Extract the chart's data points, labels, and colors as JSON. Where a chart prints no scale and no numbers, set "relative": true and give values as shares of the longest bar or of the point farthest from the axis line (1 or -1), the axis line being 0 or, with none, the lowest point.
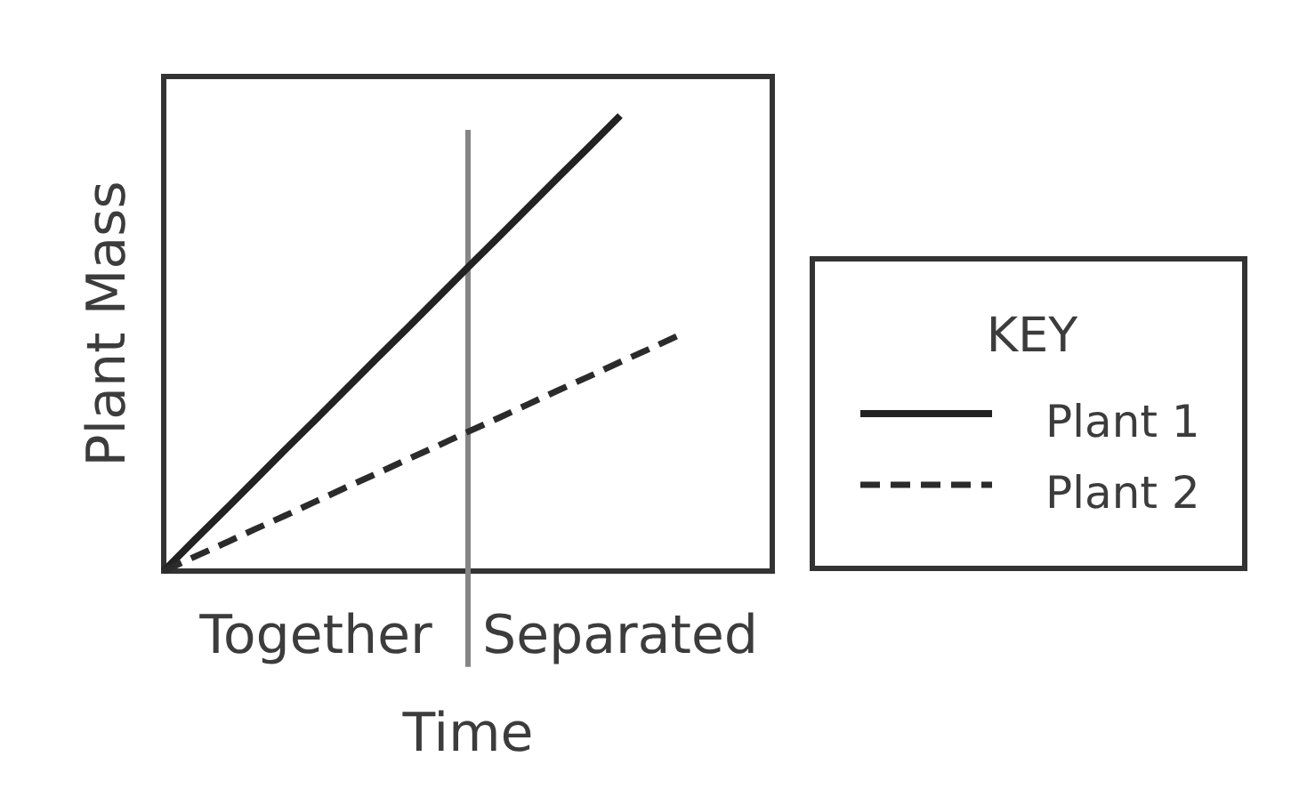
{
  "chart_data": {
    "type": "line",
    "xlabel": "Time",
    "ylabel": "Plant Mass",
    "legend_title": "KEY",
    "relative": true,
    "legend": "right",
    "categories": [
      null,
      null,
      null,
      null,
      null,
      "Together",
      null,
      null,
      null,
      null,
      null,
      null,
      null,
      null,
      null,
      "Separated",
      null,
      null,
      null,
      null,
      null
    ],
    "series": [
      {
        "name": "Plant 1",
        "color": "#222222",
        "values": [
          0,
          0.067,
          0.133,
          0.2,
          0.267,
          0.333,
          0.4,
          0.467,
          0.533,
          0.6,
          0.667,
          0.733,
          0.8,
          0.867,
          0.933,
          1,
          null,
          null,
          null,
          null,
          null
        ],
        "line_style": "solid"
      },
      {
        "name": "Plant 2",
        "color": "#2b2b2b",
        "values": [
          0,
          0.031,
          0.061,
          0.092,
          0.122,
          0.153,
          0.184,
          0.214,
          0.245,
          0.275,
          0.306,
          0.336,
          0.367,
          0.398,
          0.428,
          0.459,
          0.489,
          0.52,
          null,
          null,
          null
        ],
        "line_style": "dashed"
      }
    ]
  }
}
